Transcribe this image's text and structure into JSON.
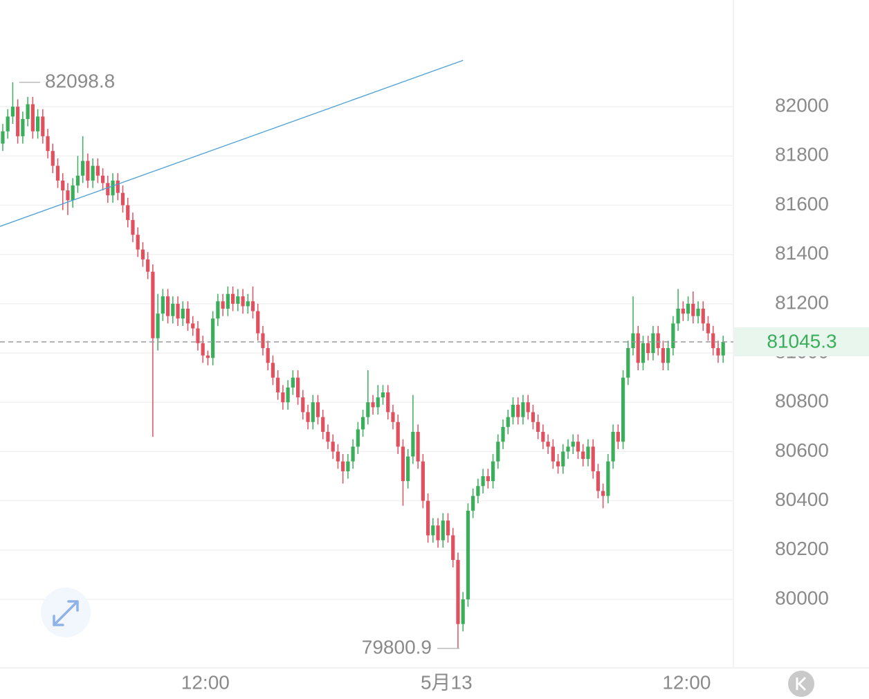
{
  "chart_data": {
    "type": "candlestick",
    "up_color": "#3aae5a",
    "down_color": "#e0505f",
    "ylim": [
      79722,
      82433
    ],
    "yticks": [
      80000,
      80200,
      80400,
      80600,
      80800,
      81000,
      81200,
      81400,
      81600,
      81800,
      82000
    ],
    "grid": true,
    "xlim": [
      -0.55,
      146.05
    ],
    "xticks": [
      {
        "value": 40.5,
        "label": "12:00"
      },
      {
        "value": 88.7,
        "label": "5月13"
      },
      {
        "value": 136.7,
        "label": "12:00"
      }
    ],
    "max_label": 82098.8,
    "min_label": 79800.9,
    "last_price": 81045.3,
    "trendline": {
      "x": [
        -0.55,
        92
      ],
      "y": [
        81514,
        82188
      ],
      "color": "#4a9fd8"
    },
    "candles": [
      [
        81850,
        81930,
        81820,
        81900
      ],
      [
        81900,
        81990,
        81870,
        81960
      ],
      [
        81960,
        82098.8,
        81930,
        82000
      ],
      [
        82000,
        82030,
        81850,
        81880
      ],
      [
        81880,
        81980,
        81850,
        81950
      ],
      [
        81950,
        82040,
        81920,
        82010
      ],
      [
        82010,
        82040,
        81870,
        81900
      ],
      [
        81900,
        81990,
        81870,
        81960
      ],
      [
        81960,
        81990,
        81850,
        81880
      ],
      [
        81880,
        81910,
        81790,
        81820
      ],
      [
        81820,
        81850,
        81730,
        81760
      ],
      [
        81760,
        81790,
        81670,
        81700
      ],
      [
        81700,
        81730,
        81580,
        81660
      ],
      [
        81660,
        81690,
        81560,
        81620
      ],
      [
        81620,
        81710,
        81590,
        81680
      ],
      [
        81680,
        81800,
        81650,
        81720
      ],
      [
        81720,
        81880,
        81690,
        81780
      ],
      [
        81780,
        81810,
        81670,
        81700
      ],
      [
        81700,
        81790,
        81670,
        81760
      ],
      [
        81760,
        81790,
        81690,
        81720
      ],
      [
        81720,
        81750,
        81660,
        81690
      ],
      [
        81690,
        81720,
        81610,
        81640
      ],
      [
        81640,
        81730,
        81610,
        81700
      ],
      [
        81700,
        81730,
        81620,
        81650
      ],
      [
        81650,
        81680,
        81570,
        81600
      ],
      [
        81600,
        81630,
        81510,
        81540
      ],
      [
        81540,
        81570,
        81450,
        81480
      ],
      [
        81480,
        81510,
        81390,
        81420
      ],
      [
        81420,
        81450,
        81350,
        81380
      ],
      [
        81380,
        81410,
        81300,
        81330
      ],
      [
        81330,
        81360,
        80660,
        81060
      ],
      [
        81060,
        81240,
        81010,
        81160
      ],
      [
        81160,
        81260,
        81130,
        81230
      ],
      [
        81230,
        81260,
        81120,
        81150
      ],
      [
        81150,
        81230,
        81120,
        81200
      ],
      [
        81200,
        81230,
        81110,
        81140
      ],
      [
        81140,
        81210,
        81110,
        81180
      ],
      [
        81180,
        81210,
        81090,
        81120
      ],
      [
        81120,
        81150,
        81070,
        81100
      ],
      [
        81100,
        81130,
        81010,
        81040
      ],
      [
        81040,
        81070,
        80960,
        80990
      ],
      [
        80990,
        81010,
        80950,
        80980
      ],
      [
        80980,
        81170,
        80950,
        81140
      ],
      [
        81140,
        81240,
        81110,
        81210
      ],
      [
        81210,
        81240,
        81150,
        81180
      ],
      [
        81180,
        81270,
        81150,
        81240
      ],
      [
        81240,
        81270,
        81170,
        81200
      ],
      [
        81200,
        81260,
        81170,
        81230
      ],
      [
        81230,
        81260,
        81160,
        81190
      ],
      [
        81190,
        81240,
        81160,
        81210
      ],
      [
        81210,
        81270,
        81140,
        81170
      ],
      [
        81170,
        81200,
        81050,
        81080
      ],
      [
        81080,
        81110,
        80990,
        81020
      ],
      [
        81020,
        81050,
        80930,
        80960
      ],
      [
        80960,
        80990,
        80870,
        80900
      ],
      [
        80900,
        80930,
        80810,
        80840
      ],
      [
        80840,
        80870,
        80770,
        80800
      ],
      [
        80800,
        80890,
        80770,
        80860
      ],
      [
        80860,
        80930,
        80830,
        80900
      ],
      [
        80900,
        80930,
        80790,
        80820
      ],
      [
        80820,
        80850,
        80730,
        80760
      ],
      [
        80760,
        80790,
        80690,
        80720
      ],
      [
        80720,
        80830,
        80690,
        80800
      ],
      [
        80800,
        80830,
        80710,
        80740
      ],
      [
        80740,
        80770,
        80650,
        80680
      ],
      [
        80680,
        80710,
        80610,
        80640
      ],
      [
        80640,
        80670,
        80570,
        80600
      ],
      [
        80600,
        80630,
        80530,
        80560
      ],
      [
        80560,
        80590,
        80470,
        80520
      ],
      [
        80520,
        80590,
        80490,
        80560
      ],
      [
        80560,
        80650,
        80530,
        80620
      ],
      [
        80620,
        80720,
        80590,
        80690
      ],
      [
        80690,
        80770,
        80660,
        80740
      ],
      [
        80740,
        80930,
        80710,
        80800
      ],
      [
        80800,
        80830,
        80750,
        80780
      ],
      [
        80780,
        80870,
        80750,
        80820
      ],
      [
        80820,
        80870,
        80790,
        80840
      ],
      [
        80840,
        80870,
        80730,
        80760
      ],
      [
        80760,
        80790,
        80690,
        80720
      ],
      [
        80720,
        80750,
        80590,
        80620
      ],
      [
        80620,
        80650,
        80380,
        80480
      ],
      [
        80480,
        80610,
        80450,
        80580
      ],
      [
        80580,
        80830,
        80550,
        80680
      ],
      [
        80680,
        80710,
        80530,
        80560
      ],
      [
        80560,
        80590,
        80370,
        80400
      ],
      [
        80400,
        80430,
        80230,
        80260
      ],
      [
        80260,
        80330,
        80230,
        80300
      ],
      [
        80300,
        80330,
        80210,
        80240
      ],
      [
        80240,
        80350,
        80210,
        80320
      ],
      [
        80320,
        80350,
        80230,
        80260
      ],
      [
        80260,
        80290,
        80130,
        80160
      ],
      [
        80160,
        80190,
        79800.9,
        79900
      ],
      [
        79900,
        80030,
        79870,
        80000
      ],
      [
        80000,
        80390,
        79970,
        80360
      ],
      [
        80360,
        80450,
        80330,
        80420
      ],
      [
        80420,
        80490,
        80390,
        80460
      ],
      [
        80460,
        80530,
        80430,
        80500
      ],
      [
        80500,
        80530,
        80450,
        80480
      ],
      [
        80480,
        80590,
        80450,
        80560
      ],
      [
        80560,
        80670,
        80530,
        80640
      ],
      [
        80640,
        80730,
        80610,
        80700
      ],
      [
        80700,
        80770,
        80670,
        80740
      ],
      [
        80740,
        80820,
        80710,
        80790
      ],
      [
        80790,
        80820,
        80710,
        80740
      ],
      [
        80740,
        80830,
        80710,
        80800
      ],
      [
        80800,
        80830,
        80730,
        80760
      ],
      [
        80760,
        80790,
        80690,
        80720
      ],
      [
        80720,
        80750,
        80650,
        80680
      ],
      [
        80680,
        80710,
        80610,
        80640
      ],
      [
        80640,
        80670,
        80590,
        80620
      ],
      [
        80620,
        80650,
        80530,
        80560
      ],
      [
        80560,
        80590,
        80510,
        80540
      ],
      [
        80540,
        80630,
        80510,
        80600
      ],
      [
        80600,
        80650,
        80570,
        80620
      ],
      [
        80620,
        80670,
        80590,
        80640
      ],
      [
        80640,
        80670,
        80570,
        80600
      ],
      [
        80600,
        80630,
        80540,
        80570
      ],
      [
        80570,
        80650,
        80540,
        80620
      ],
      [
        80620,
        80650,
        80490,
        80520
      ],
      [
        80520,
        80550,
        80410,
        80440
      ],
      [
        80440,
        80470,
        80370,
        80420
      ],
      [
        80420,
        80590,
        80390,
        80560
      ],
      [
        80560,
        80710,
        80530,
        80680
      ],
      [
        80680,
        80710,
        80610,
        80640
      ],
      [
        80640,
        80930,
        80610,
        80900
      ],
      [
        80900,
        81050,
        80870,
        81020
      ],
      [
        81020,
        81230,
        80990,
        81080
      ],
      [
        81080,
        81110,
        80930,
        80960
      ],
      [
        80960,
        81070,
        80930,
        81040
      ],
      [
        81040,
        81070,
        80970,
        81000
      ],
      [
        81000,
        81110,
        80970,
        81080
      ],
      [
        81080,
        81110,
        80990,
        81020
      ],
      [
        81020,
        81050,
        80930,
        80960
      ],
      [
        80960,
        81050,
        80930,
        81020
      ],
      [
        81020,
        81150,
        80990,
        81120
      ],
      [
        81120,
        81260,
        81090,
        81180
      ],
      [
        81180,
        81210,
        81130,
        81160
      ],
      [
        81160,
        81230,
        81130,
        81200
      ],
      [
        81200,
        81250,
        81120,
        81150
      ],
      [
        81150,
        81210,
        81120,
        81180
      ],
      [
        81180,
        81210,
        81090,
        81120
      ],
      [
        81120,
        81150,
        81050,
        81080
      ],
      [
        81080,
        81110,
        80990,
        81020
      ],
      [
        81020,
        81050,
        80960,
        80990
      ],
      [
        80990,
        81070,
        80960,
        81045.3
      ]
    ]
  }
}
